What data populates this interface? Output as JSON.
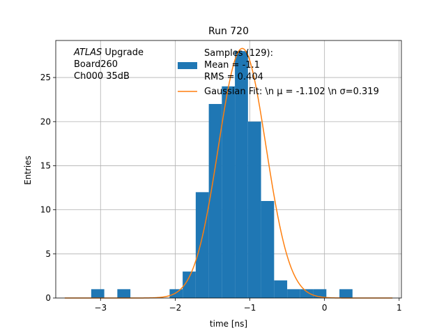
{
  "chart_data": {
    "type": "bar",
    "title": "Run 720",
    "xlabel": "time [ns]",
    "ylabel": "Entries",
    "xlim": [
      -3.6,
      1.03
    ],
    "ylim": [
      0,
      29.2
    ],
    "grid": true,
    "x_ticks": [
      -3,
      -2,
      -1,
      0,
      1
    ],
    "x_tick_labels": [
      "−3",
      "−2",
      "−1",
      "0",
      "1"
    ],
    "y_ticks": [
      0,
      5,
      10,
      15,
      20,
      25
    ],
    "y_tick_labels": [
      "0",
      "5",
      "10",
      "15",
      "20",
      "25"
    ],
    "histogram": {
      "color": "#1f77b4",
      "bin_edges": [
        -3.125,
        -2.95,
        -2.775,
        -2.6,
        -2.425,
        -2.25,
        -2.075,
        -1.9,
        -1.725,
        -1.55,
        -1.375,
        -1.2,
        -1.025,
        -0.85,
        -0.675,
        -0.5,
        -0.325,
        -0.15,
        0.025,
        0.2,
        0.375,
        0.55
      ],
      "counts": [
        1,
        0,
        1,
        0,
        0,
        0,
        1,
        3,
        12,
        22,
        24,
        28,
        20,
        11,
        2,
        1,
        1,
        1,
        0,
        1,
        0
      ]
    },
    "fit": {
      "color": "#ff7f0e",
      "amplitude": 28.3,
      "mu": -1.102,
      "sigma": 0.319
    },
    "legend": {
      "location": "upper right",
      "entries": [
        {
          "kind": "patch",
          "lines": [
            "Samples (129):",
            " Mean = -1.1",
            " RMS = 0.404"
          ]
        },
        {
          "kind": "line",
          "lines": [
            "Gaussian Fit: \\n μ = -1.102 \\n σ=0.319"
          ]
        }
      ]
    },
    "annotation": {
      "italic_word": "ATLAS",
      "lines": [
        " Upgrade",
        " Board260",
        " Ch000 35dB"
      ]
    }
  }
}
